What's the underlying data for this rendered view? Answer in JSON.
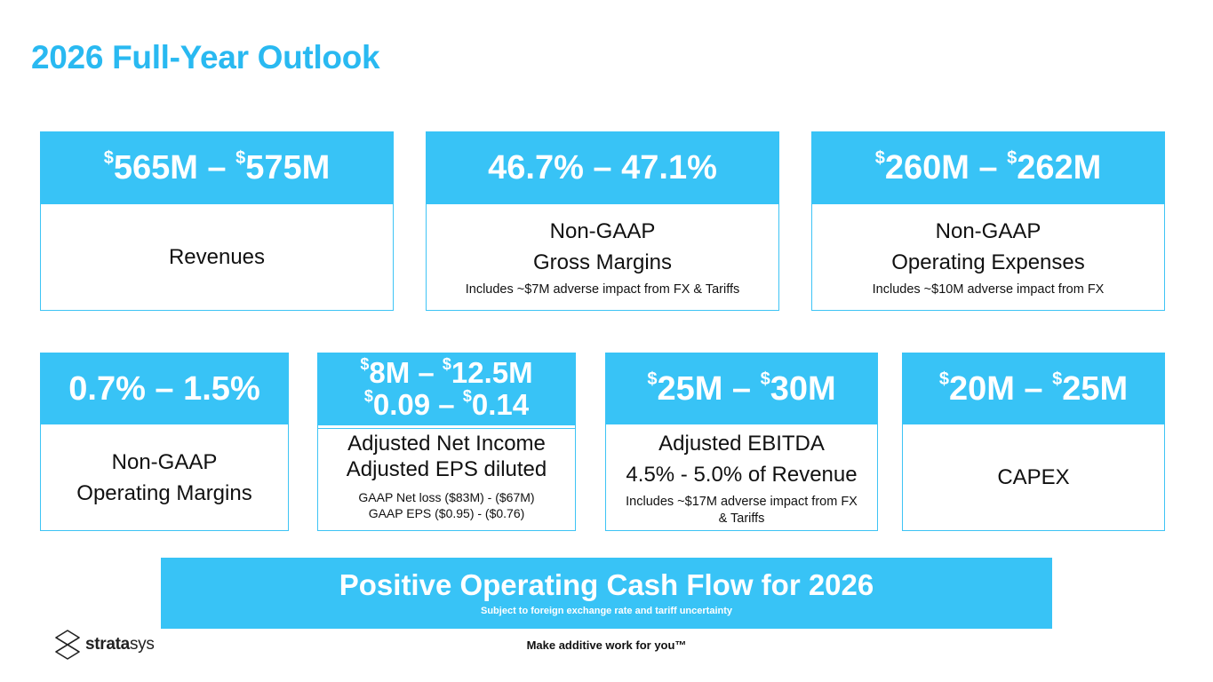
{
  "title": "2026 Full-Year Outlook",
  "colors": {
    "accent": "#38c3f6",
    "title": "#29b9f1",
    "text": "#111111"
  },
  "cards": {
    "revenues": {
      "low": "565M",
      "high": "575M",
      "currency": "$",
      "sep": " – ",
      "label": "Revenues"
    },
    "gross_margin": {
      "value": "46.7% – 47.1%",
      "label1": "Non-GAAP",
      "label2": "Gross Margins",
      "note": "Includes ~$7M adverse impact from FX & Tariffs"
    },
    "opex": {
      "low": "260M",
      "high": "262M",
      "currency": "$",
      "sep": " – ",
      "label1": "Non-GAAP",
      "label2": "Operating Expenses",
      "note": "Includes ~$10M adverse impact from FX"
    },
    "op_margin": {
      "value": "0.7% – 1.5%",
      "label1": "Non-GAAP",
      "label2": "Operating Margins"
    },
    "net_income": {
      "line1_low": "8M",
      "line1_high": "12.5M",
      "line2_low": "0.09",
      "line2_high": "0.14",
      "currency": "$",
      "sep": " – ",
      "label1": "Adjusted Net Income",
      "label2": "Adjusted EPS diluted",
      "note1": "GAAP Net loss ($83M) - ($67M)",
      "note2": "GAAP EPS ($0.95) - ($0.76)"
    },
    "ebitda": {
      "low": "25M",
      "high": "30M",
      "currency": "$",
      "sep": " – ",
      "label1": "Adjusted EBITDA",
      "label2": "4.5% - 5.0% of Revenue",
      "note": "Includes ~$17M adverse impact from FX & Tariffs"
    },
    "capex": {
      "low": "20M",
      "high": "25M",
      "currency": "$",
      "sep": " – ",
      "label": "CAPEX"
    }
  },
  "banner": {
    "title": "Positive Operating Cash Flow for 2026",
    "subtitle": "Subject to foreign exchange rate and tariff uncertainty"
  },
  "footer": {
    "tagline": "Make additive work for you™",
    "logo_bold": "strata",
    "logo_light": "sys",
    "logo_icon": "stratasys-logo-icon"
  }
}
